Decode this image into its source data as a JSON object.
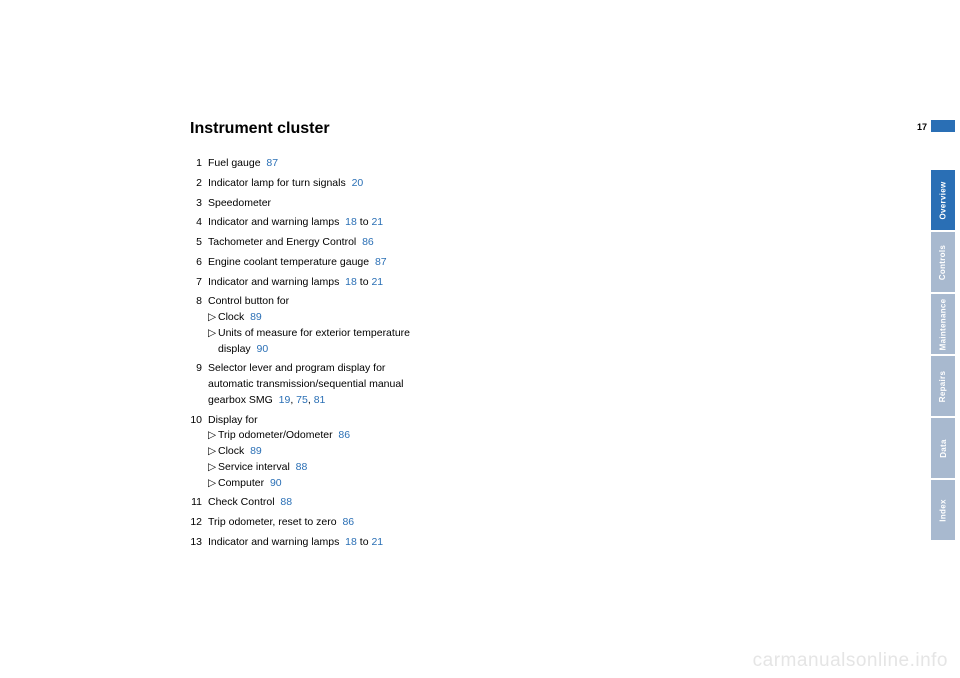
{
  "page_number": "17",
  "heading": "Instrument cluster",
  "colors": {
    "link": "#2a6fb5",
    "tab_active_bg": "#2a6fb5",
    "tab_inactive_bg": "#a8b9cf",
    "watermark": "#e5e5e5"
  },
  "items": [
    {
      "n": "1",
      "text": "Fuel gauge",
      "refs": [
        "87"
      ]
    },
    {
      "n": "2",
      "text": "Indicator lamp for turn signals",
      "refs": [
        "20"
      ]
    },
    {
      "n": "3",
      "text": "Speedometer",
      "refs": []
    },
    {
      "n": "4",
      "text": "Indicator and warning lamps",
      "refs": [
        "18"
      ],
      "tail": " to ",
      "refs2": [
        "21"
      ]
    },
    {
      "n": "5",
      "text": "Tachometer and Energy Control",
      "refs": [
        "86"
      ]
    },
    {
      "n": "6",
      "text": "Engine coolant temperature gauge",
      "refs": [
        "87"
      ]
    },
    {
      "n": "7",
      "text": "Indicator and warning lamps",
      "refs": [
        "18"
      ],
      "tail": " to ",
      "refs2": [
        "21"
      ]
    },
    {
      "n": "8",
      "text": "Control button for",
      "subs": [
        {
          "text": "Clock",
          "refs": [
            "89"
          ]
        },
        {
          "text": "Units of measure for exterior temperature display",
          "refs": [
            "90"
          ]
        }
      ]
    },
    {
      "n": "9",
      "text": "Selector lever and program display for automatic transmission/sequential manual gearbox SMG",
      "refs": [
        "19",
        "75",
        "81"
      ]
    },
    {
      "n": "10",
      "text": "Display for",
      "subs": [
        {
          "text": "Trip odometer/Odometer",
          "refs": [
            "86"
          ]
        },
        {
          "text": "Clock",
          "refs": [
            "89"
          ]
        },
        {
          "text": "Service interval",
          "refs": [
            "88"
          ]
        },
        {
          "text": "Computer",
          "refs": [
            "90"
          ]
        }
      ]
    },
    {
      "n": "11",
      "text": "Check Control",
      "refs": [
        "88"
      ]
    },
    {
      "n": "12",
      "text": "Trip odometer, reset to zero",
      "refs": [
        "86"
      ]
    },
    {
      "n": "13",
      "text": "Indicator and warning lamps",
      "refs": [
        "18"
      ],
      "tail": " to ",
      "refs2": [
        "21"
      ]
    }
  ],
  "tabs": [
    {
      "label": "Overview",
      "active": true
    },
    {
      "label": "Controls",
      "active": false
    },
    {
      "label": "Maintenance",
      "active": false
    },
    {
      "label": "Repairs",
      "active": false
    },
    {
      "label": "Data",
      "active": false
    },
    {
      "label": "Index",
      "active": false
    }
  ],
  "watermark": "carmanualsonline.info"
}
